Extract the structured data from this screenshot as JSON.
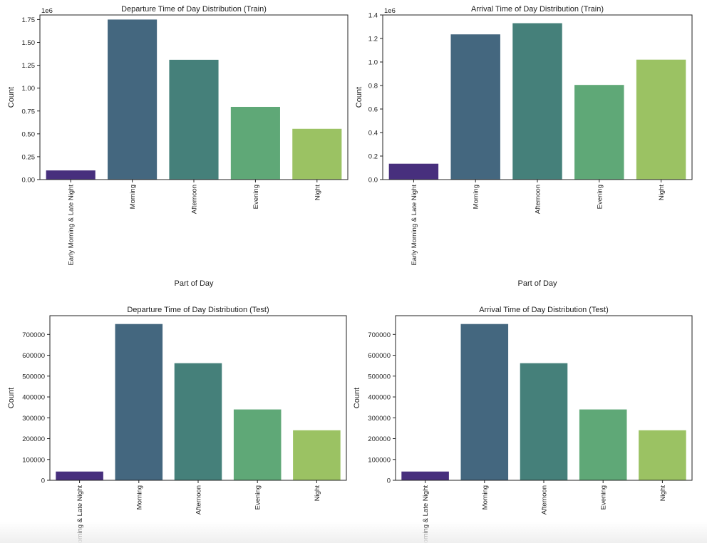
{
  "chart_data": [
    {
      "type": "bar",
      "title": "Departure Time of Day Distribution (Train)",
      "categories": [
        "Early Morning & Late Night",
        "Morning",
        "Afternoon",
        "Evening",
        "Night"
      ],
      "values": [
        100000,
        1750000,
        1310000,
        795000,
        555000
      ],
      "xlabel": "Part of Day",
      "ylabel": "Count",
      "ylim": [
        0,
        1800000
      ],
      "yticks": [
        0,
        250000,
        500000,
        750000,
        1000000,
        1250000,
        1500000,
        1750000
      ],
      "ytick_labels": [
        "0.00",
        "0.25",
        "0.50",
        "0.75",
        "1.00",
        "1.25",
        "1.50",
        "1.75"
      ],
      "offset_label": "1e6",
      "grid": false
    },
    {
      "type": "bar",
      "title": "Arrival Time of Day Distribution (Train)",
      "categories": [
        "Early Morning & Late Night",
        "Morning",
        "Afternoon",
        "Evening",
        "Night"
      ],
      "values": [
        135000,
        1235000,
        1330000,
        805000,
        1020000
      ],
      "xlabel": "Part of Day",
      "ylabel": "Count",
      "ylim": [
        0,
        1400000
      ],
      "yticks": [
        0,
        200000,
        400000,
        600000,
        800000,
        1000000,
        1200000,
        1400000
      ],
      "ytick_labels": [
        "0.0",
        "0.2",
        "0.4",
        "0.6",
        "0.8",
        "1.0",
        "1.2",
        "1.4"
      ],
      "offset_label": "1e6",
      "grid": false
    },
    {
      "type": "bar",
      "title": "Departure Time of Day Distribution (Test)",
      "categories": [
        "Early Morning & Late Night",
        "Morning",
        "Afternoon",
        "Evening",
        "Night"
      ],
      "values": [
        42000,
        750000,
        562000,
        340000,
        240000
      ],
      "xlabel": "",
      "ylabel": "Count",
      "ylim": [
        0,
        790000
      ],
      "yticks": [
        0,
        100000,
        200000,
        300000,
        400000,
        500000,
        600000,
        700000
      ],
      "ytick_labels": [
        "0",
        "100000",
        "200000",
        "300000",
        "400000",
        "500000",
        "600000",
        "700000"
      ],
      "offset_label": "",
      "grid": false
    },
    {
      "type": "bar",
      "title": "Arrival Time of Day Distribution (Test)",
      "categories": [
        "Early Morning & Late Night",
        "Morning",
        "Afternoon",
        "Evening",
        "Night"
      ],
      "values": [
        42000,
        750000,
        562000,
        340000,
        240000
      ],
      "xlabel": "",
      "ylabel": "Count",
      "ylim": [
        0,
        790000
      ],
      "yticks": [
        0,
        100000,
        200000,
        300000,
        400000,
        500000,
        600000,
        700000
      ],
      "ytick_labels": [
        "0",
        "100000",
        "200000",
        "300000",
        "400000",
        "500000",
        "600000",
        "700000"
      ],
      "offset_label": "",
      "grid": false
    }
  ],
  "colors": {
    "palette": [
      "#472f7d",
      "#44677f",
      "#45807a",
      "#5fa877",
      "#9bc263"
    ],
    "axis": "#222222",
    "background": "#ffffff"
  }
}
